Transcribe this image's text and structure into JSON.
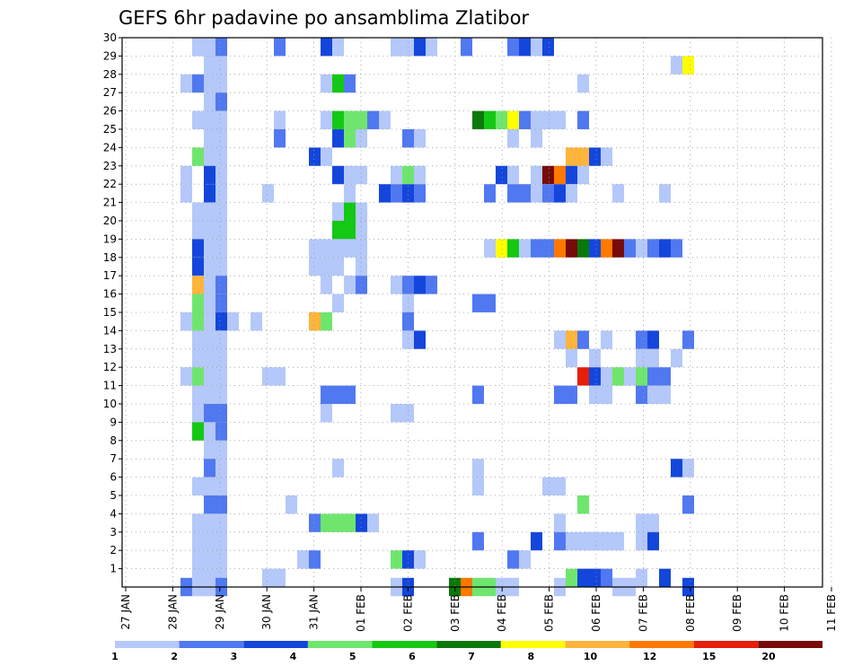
{
  "chart_data": {
    "type": "heatmap",
    "title": "GEFS 6hr padavine po ansamblima Zlatibor",
    "x_start": "2026-01-27T00:00",
    "x_end": "2026-02-11T00:00",
    "x_step_hours": 6,
    "xtick_labels": [
      "27 JAN",
      "28 JAN",
      "29 JAN",
      "30 JAN",
      "31 JAN",
      "01 FEB",
      "02 FEB",
      "03 FEB",
      "04 FEB",
      "05 FEB",
      "06 FEB",
      "07 FEB",
      "08 FEB",
      "09 FEB",
      "10 FEB",
      "11 FEB"
    ],
    "ylim": [
      0,
      30
    ],
    "yticks": [
      1,
      2,
      3,
      4,
      5,
      6,
      7,
      8,
      9,
      10,
      11,
      12,
      13,
      14,
      15,
      16,
      17,
      18,
      19,
      20,
      21,
      22,
      23,
      24,
      25,
      26,
      27,
      28,
      29,
      30
    ],
    "grid": true,
    "legend": {
      "placement": "bottom",
      "colors": [
        "#b4c8fa",
        "#5078f0",
        "#1446dc",
        "#6ee66e",
        "#14c814",
        "#0a780a",
        "#ffff00",
        "#ffb43c",
        "#ff7800",
        "#e61e0a",
        "#780a0a"
      ],
      "labels": [
        "1",
        "2",
        "3",
        "4",
        "5",
        "6",
        "7",
        "8",
        "10",
        "12",
        "15",
        "20"
      ]
    },
    "cells": [
      [
        4,
        30,
        2
      ],
      [
        5,
        30,
        1
      ],
      [
        6,
        30,
        1
      ],
      [
        15,
        30,
        3
      ],
      [
        16,
        30,
        1
      ],
      [
        21,
        30,
        3
      ],
      [
        22,
        30,
        4
      ],
      [
        31,
        30,
        2
      ],
      [
        32,
        30,
        3
      ],
      [
        4,
        29,
        1
      ],
      [
        5,
        29,
        1
      ],
      [
        6,
        29,
        2
      ],
      [
        11,
        29,
        2
      ],
      [
        21,
        29,
        1
      ],
      [
        22,
        29,
        1
      ],
      [
        23,
        29,
        3
      ],
      [
        24,
        29,
        1
      ],
      [
        27,
        29,
        2
      ],
      [
        33,
        29,
        1
      ],
      [
        34,
        29,
        3
      ],
      [
        5,
        28,
        1
      ],
      [
        6,
        28,
        1
      ],
      [
        45,
        28,
        1
      ],
      [
        46,
        28,
        7
      ],
      [
        3,
        27,
        1
      ],
      [
        4,
        27,
        2
      ],
      [
        5,
        27,
        1
      ],
      [
        6,
        27,
        1
      ],
      [
        15,
        27,
        1
      ],
      [
        16,
        27,
        5
      ],
      [
        17,
        27,
        2
      ],
      [
        37,
        27,
        1
      ],
      [
        5,
        26,
        1
      ],
      [
        6,
        26,
        2
      ],
      [
        4,
        25,
        1
      ],
      [
        5,
        25,
        1
      ],
      [
        6,
        25,
        1
      ],
      [
        11,
        25,
        1
      ],
      [
        15,
        25,
        1
      ],
      [
        16,
        25,
        5
      ],
      [
        17,
        25,
        4
      ],
      [
        18,
        25,
        4
      ],
      [
        19,
        25,
        2
      ],
      [
        20,
        25,
        1
      ],
      [
        28,
        25,
        6
      ],
      [
        29,
        25,
        5
      ],
      [
        30,
        25,
        4
      ],
      [
        31,
        25,
        7
      ],
      [
        32,
        25,
        2
      ],
      [
        33,
        25,
        1
      ],
      [
        34,
        25,
        1
      ],
      [
        35,
        25,
        1
      ],
      [
        37,
        25,
        2
      ],
      [
        5,
        24,
        1
      ],
      [
        6,
        24,
        1
      ],
      [
        11,
        24,
        2
      ],
      [
        16,
        24,
        3
      ],
      [
        17,
        24,
        4
      ],
      [
        18,
        24,
        1
      ],
      [
        22,
        24,
        2
      ],
      [
        23,
        24,
        1
      ],
      [
        31,
        24,
        1
      ],
      [
        33,
        24,
        1
      ],
      [
        4,
        23,
        4
      ],
      [
        5,
        23,
        1
      ],
      [
        6,
        23,
        1
      ],
      [
        14,
        23,
        3
      ],
      [
        15,
        23,
        1
      ],
      [
        36,
        23,
        8
      ],
      [
        37,
        23,
        8
      ],
      [
        38,
        23,
        3
      ],
      [
        39,
        23,
        1
      ],
      [
        3,
        22,
        1
      ],
      [
        5,
        22,
        3
      ],
      [
        6,
        22,
        1
      ],
      [
        16,
        22,
        3
      ],
      [
        17,
        22,
        1
      ],
      [
        18,
        22,
        1
      ],
      [
        21,
        22,
        1
      ],
      [
        22,
        22,
        4
      ],
      [
        23,
        22,
        1
      ],
      [
        30,
        22,
        3
      ],
      [
        31,
        22,
        1
      ],
      [
        33,
        22,
        1
      ],
      [
        34,
        22,
        11
      ],
      [
        35,
        22,
        9
      ],
      [
        36,
        22,
        3
      ],
      [
        37,
        22,
        1
      ],
      [
        3,
        21,
        1
      ],
      [
        5,
        21,
        3
      ],
      [
        6,
        21,
        1
      ],
      [
        10,
        21,
        1
      ],
      [
        17,
        21,
        1
      ],
      [
        20,
        21,
        3
      ],
      [
        21,
        21,
        2
      ],
      [
        22,
        21,
        3
      ],
      [
        23,
        21,
        2
      ],
      [
        29,
        21,
        2
      ],
      [
        31,
        21,
        2
      ],
      [
        32,
        21,
        2
      ],
      [
        33,
        21,
        1
      ],
      [
        34,
        21,
        2
      ],
      [
        35,
        21,
        3
      ],
      [
        36,
        21,
        1
      ],
      [
        40,
        21,
        1
      ],
      [
        44,
        21,
        1
      ],
      [
        4,
        20,
        1
      ],
      [
        5,
        20,
        1
      ],
      [
        6,
        20,
        1
      ],
      [
        16,
        20,
        1
      ],
      [
        17,
        20,
        5
      ],
      [
        18,
        20,
        1
      ],
      [
        4,
        19,
        1
      ],
      [
        5,
        19,
        1
      ],
      [
        6,
        19,
        1
      ],
      [
        16,
        19,
        5
      ],
      [
        17,
        19,
        5
      ],
      [
        18,
        19,
        1
      ],
      [
        4,
        18,
        3
      ],
      [
        5,
        18,
        1
      ],
      [
        6,
        18,
        1
      ],
      [
        14,
        18,
        1
      ],
      [
        15,
        18,
        1
      ],
      [
        16,
        18,
        1
      ],
      [
        17,
        18,
        1
      ],
      [
        18,
        18,
        1
      ],
      [
        29,
        18,
        1
      ],
      [
        30,
        18,
        7
      ],
      [
        31,
        18,
        5
      ],
      [
        32,
        18,
        1
      ],
      [
        33,
        18,
        2
      ],
      [
        34,
        18,
        2
      ],
      [
        35,
        18,
        9
      ],
      [
        36,
        18,
        11
      ],
      [
        37,
        18,
        6
      ],
      [
        38,
        18,
        3
      ],
      [
        39,
        18,
        9
      ],
      [
        40,
        18,
        11
      ],
      [
        41,
        18,
        2
      ],
      [
        42,
        18,
        1
      ],
      [
        43,
        18,
        2
      ],
      [
        44,
        18,
        3
      ],
      [
        45,
        18,
        2
      ],
      [
        4,
        17,
        3
      ],
      [
        5,
        17,
        1
      ],
      [
        6,
        17,
        1
      ],
      [
        14,
        17,
        1
      ],
      [
        15,
        17,
        1
      ],
      [
        16,
        17,
        1
      ],
      [
        18,
        17,
        1
      ],
      [
        4,
        16,
        8
      ],
      [
        5,
        16,
        1
      ],
      [
        6,
        16,
        2
      ],
      [
        15,
        16,
        1
      ],
      [
        17,
        16,
        1
      ],
      [
        18,
        16,
        2
      ],
      [
        21,
        16,
        1
      ],
      [
        22,
        16,
        2
      ],
      [
        23,
        16,
        3
      ],
      [
        24,
        16,
        2
      ],
      [
        4,
        15,
        4
      ],
      [
        5,
        15,
        1
      ],
      [
        6,
        15,
        2
      ],
      [
        16,
        15,
        1
      ],
      [
        22,
        15,
        1
      ],
      [
        28,
        15,
        2
      ],
      [
        29,
        15,
        2
      ],
      [
        3,
        14,
        1
      ],
      [
        4,
        14,
        4
      ],
      [
        5,
        14,
        1
      ],
      [
        6,
        14,
        3
      ],
      [
        7,
        14,
        1
      ],
      [
        9,
        14,
        1
      ],
      [
        14,
        14,
        8
      ],
      [
        15,
        14,
        4
      ],
      [
        22,
        14,
        2
      ],
      [
        4,
        13,
        1
      ],
      [
        5,
        13,
        1
      ],
      [
        6,
        13,
        1
      ],
      [
        22,
        13,
        1
      ],
      [
        23,
        13,
        3
      ],
      [
        35,
        13,
        1
      ],
      [
        36,
        13,
        8
      ],
      [
        37,
        13,
        2
      ],
      [
        39,
        13,
        1
      ],
      [
        42,
        13,
        2
      ],
      [
        43,
        13,
        3
      ],
      [
        46,
        13,
        2
      ],
      [
        4,
        12,
        1
      ],
      [
        5,
        12,
        1
      ],
      [
        6,
        12,
        1
      ],
      [
        36,
        12,
        1
      ],
      [
        38,
        12,
        1
      ],
      [
        42,
        12,
        1
      ],
      [
        43,
        12,
        1
      ],
      [
        45,
        12,
        1
      ],
      [
        3,
        11,
        1
      ],
      [
        4,
        11,
        4
      ],
      [
        5,
        11,
        1
      ],
      [
        6,
        11,
        1
      ],
      [
        10,
        11,
        1
      ],
      [
        11,
        11,
        1
      ],
      [
        37,
        11,
        10
      ],
      [
        38,
        11,
        3
      ],
      [
        39,
        11,
        1
      ],
      [
        40,
        11,
        4
      ],
      [
        41,
        11,
        1
      ],
      [
        42,
        11,
        4
      ],
      [
        43,
        11,
        2
      ],
      [
        44,
        11,
        2
      ],
      [
        4,
        10,
        1
      ],
      [
        5,
        10,
        1
      ],
      [
        6,
        10,
        1
      ],
      [
        15,
        10,
        2
      ],
      [
        16,
        10,
        2
      ],
      [
        17,
        10,
        2
      ],
      [
        28,
        10,
        2
      ],
      [
        35,
        10,
        2
      ],
      [
        36,
        10,
        2
      ],
      [
        38,
        10,
        1
      ],
      [
        39,
        10,
        1
      ],
      [
        42,
        10,
        2
      ],
      [
        43,
        10,
        1
      ],
      [
        44,
        10,
        1
      ],
      [
        4,
        9,
        1
      ],
      [
        5,
        9,
        2
      ],
      [
        6,
        9,
        2
      ],
      [
        15,
        9,
        1
      ],
      [
        21,
        9,
        1
      ],
      [
        22,
        9,
        1
      ],
      [
        4,
        8,
        5
      ],
      [
        5,
        8,
        1
      ],
      [
        6,
        8,
        2
      ],
      [
        5,
        7,
        1
      ],
      [
        6,
        7,
        1
      ],
      [
        5,
        6,
        2
      ],
      [
        6,
        6,
        1
      ],
      [
        16,
        6,
        1
      ],
      [
        28,
        6,
        1
      ],
      [
        45,
        6,
        3
      ],
      [
        46,
        6,
        1
      ],
      [
        4,
        5,
        1
      ],
      [
        5,
        5,
        1
      ],
      [
        6,
        5,
        1
      ],
      [
        28,
        5,
        1
      ],
      [
        34,
        5,
        1
      ],
      [
        35,
        5,
        1
      ],
      [
        5,
        4,
        2
      ],
      [
        6,
        4,
        2
      ],
      [
        12,
        4,
        1
      ],
      [
        37,
        4,
        4
      ],
      [
        46,
        4,
        2
      ],
      [
        4,
        3,
        1
      ],
      [
        5,
        3,
        1
      ],
      [
        6,
        3,
        1
      ],
      [
        14,
        3,
        2
      ],
      [
        15,
        3,
        4
      ],
      [
        16,
        3,
        4
      ],
      [
        17,
        3,
        4
      ],
      [
        18,
        3,
        3
      ],
      [
        19,
        3,
        1
      ],
      [
        35,
        3,
        1
      ],
      [
        42,
        3,
        1
      ],
      [
        43,
        3,
        1
      ],
      [
        4,
        2,
        1
      ],
      [
        5,
        2,
        1
      ],
      [
        6,
        2,
        1
      ],
      [
        28,
        2,
        2
      ],
      [
        33,
        2,
        3
      ],
      [
        35,
        2,
        2
      ],
      [
        36,
        2,
        1
      ],
      [
        37,
        2,
        1
      ],
      [
        38,
        2,
        1
      ],
      [
        39,
        2,
        1
      ],
      [
        40,
        2,
        1
      ],
      [
        42,
        2,
        1
      ],
      [
        43,
        2,
        3
      ],
      [
        4,
        1,
        1
      ],
      [
        5,
        1,
        1
      ],
      [
        6,
        1,
        1
      ],
      [
        13,
        1,
        1
      ],
      [
        14,
        1,
        2
      ],
      [
        21,
        1,
        4
      ],
      [
        22,
        1,
        3
      ],
      [
        23,
        1,
        1
      ],
      [
        31,
        1,
        2
      ],
      [
        32,
        1,
        1
      ],
      [
        4,
        0,
        1
      ],
      [
        5,
        0,
        1
      ],
      [
        6,
        0,
        1
      ],
      [
        10,
        0,
        1
      ],
      [
        11,
        0,
        1
      ],
      [
        36,
        0,
        4
      ],
      [
        37,
        0,
        3
      ],
      [
        38,
        0,
        3
      ],
      [
        39,
        0,
        2
      ],
      [
        42,
        0,
        1
      ],
      [
        44,
        0,
        3
      ],
      [
        3,
        -1,
        2
      ],
      [
        4,
        -1,
        1
      ],
      [
        5,
        -1,
        1
      ],
      [
        6,
        -1,
        2
      ],
      [
        21,
        -1,
        1
      ],
      [
        22,
        -1,
        3
      ],
      [
        35,
        -1,
        1
      ],
      [
        26,
        -2,
        6
      ],
      [
        27,
        -2,
        9
      ],
      [
        28,
        -2,
        4
      ],
      [
        29,
        -2,
        4
      ],
      [
        30,
        -2,
        1
      ],
      [
        31,
        -2,
        1
      ],
      [
        40,
        -2,
        1
      ],
      [
        41,
        -2,
        1
      ],
      [
        46,
        -2,
        3
      ]
    ]
  }
}
